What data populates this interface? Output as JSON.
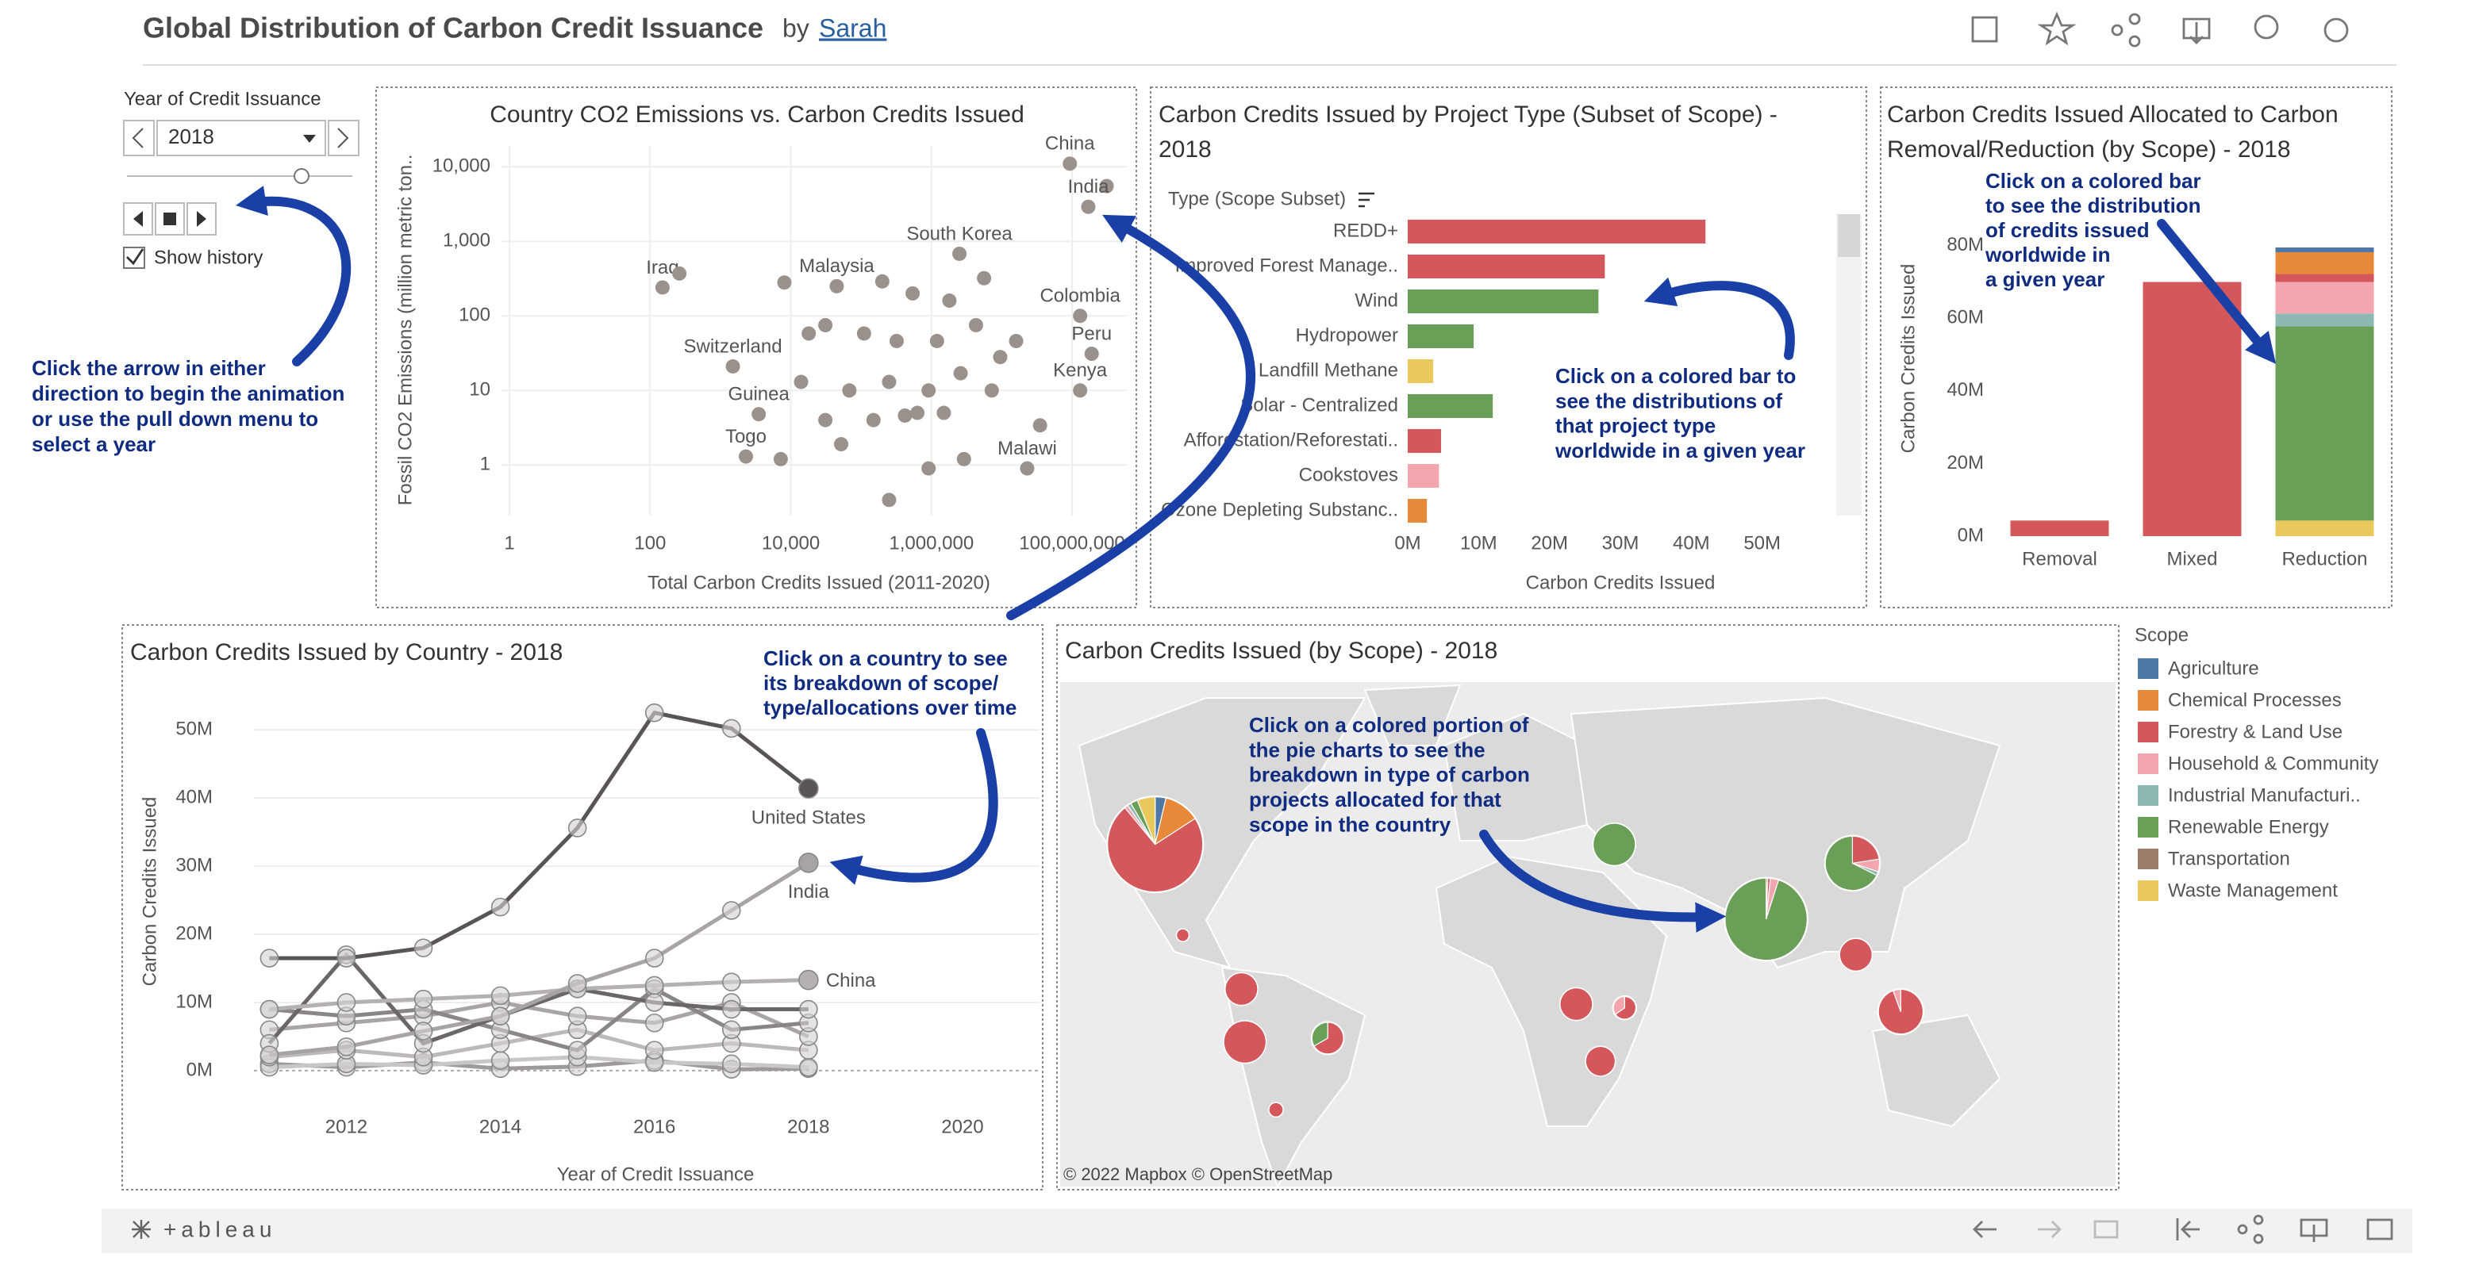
{
  "header": {
    "title": "Global Distribution of Carbon Credit Issuance",
    "by": "by",
    "author": "Sarah"
  },
  "controls": {
    "label": "Year of Credit Issuance",
    "year": "2018",
    "show_history": "Show history"
  },
  "annotations": [
    [
      "Click the arrow in either",
      "direction to begin the animation",
      "or use the pull down menu to",
      "select a year"
    ],
    [
      "Click on a country to see",
      "its breakdown of scope/",
      "type/allocations over time"
    ],
    [
      "Click on a colored bar to",
      "see the distributions of",
      "that project type",
      "worldwide in a given year"
    ],
    [
      "Click on a colored bar",
      "to see the distribution",
      "of credits issued",
      "worldwide in",
      "a given year"
    ],
    [
      "Click on a colored portion of",
      "the pie charts to see the",
      "breakdown in type of carbon",
      "projects allocated for that",
      "scope in the country"
    ]
  ],
  "map_attribution": "© 2022 Mapbox  © OpenStreetMap",
  "footer": {
    "logo": "+ableau"
  },
  "chart_data": [
    {
      "type": "scatter",
      "title": "Country CO2 Emissions vs. Carbon Credits Issued",
      "x_label": "Total Carbon Credits Issued (2011-2020)",
      "y_label": "Fossil CO2 Emissions (million metric ton..",
      "xscale": "log",
      "yscale": "log",
      "grid": true,
      "color": "#9b918c",
      "x": [
        93000000,
        310000000,
        170000000,
        2500000,
        45000,
        130000000,
        190000000,
        130000000,
        150,
        260,
        1500,
        3500,
        2300,
        23000000,
        8100,
        200000,
        540000,
        1800000,
        5600000,
        31000,
        110000,
        320000,
        1200000,
        4300000,
        16000000,
        14000,
        68000,
        250000,
        910000,
        2600000,
        7200000,
        31000,
        150000,
        420000,
        1500000,
        35000000,
        52000,
        910000,
        2900000,
        7200,
        250000,
        18000,
        630000,
        9500000
      ],
      "values": [
        11000,
        5500,
        2900,
        680,
        250,
        100,
        31,
        10,
        240,
        370,
        21,
        4.8,
        1.3,
        0.9,
        280,
        290,
        200,
        160,
        320,
        75,
        58,
        46,
        46,
        75,
        46,
        13,
        10,
        13,
        10,
        17,
        10,
        4,
        4,
        4.6,
        5,
        3.4,
        1.9,
        0.9,
        1.2,
        1.2,
        0.34,
        58,
        5,
        28
      ],
      "point_labels": [
        "China",
        null,
        "India",
        "South Korea",
        "Malaysia",
        "Colombia",
        "Peru",
        "Kenya",
        "Iraq",
        null,
        "Switzerland",
        "Guinea",
        "Togo",
        "Malawi",
        null,
        null,
        null,
        null,
        null,
        null,
        null,
        null,
        null,
        null,
        null,
        null,
        null,
        null,
        null,
        null,
        null,
        null,
        null,
        null,
        null,
        null,
        null,
        null,
        null,
        null,
        null,
        null,
        null,
        null
      ],
      "xlim": [
        0.77,
        600000000
      ],
      "ylim": [
        0.21,
        19000
      ],
      "xticks": [
        1,
        100,
        {
          "value": 10000,
          "label": "10,000"
        },
        {
          "value": 1000000,
          "label": "1,000,000"
        },
        {
          "value": 100000000,
          "label": "100,000,000"
        }
      ],
      "yticks": [
        1,
        10,
        100,
        {
          "value": 1000,
          "label": "1,000"
        },
        {
          "value": 10000,
          "label": "10,000"
        }
      ]
    },
    {
      "type": "hbar",
      "title": [
        "Carbon Credits Issued by Project Type (Subset of Scope) -",
        "2018"
      ],
      "legend_title": "Type (Scope Subset)",
      "x_label": "Carbon Credits Issued",
      "categories": [
        "REDD+",
        "Improved Forest Manage..",
        "Wind",
        "Hydropower",
        "Landfill Methane",
        "Solar - Centralized",
        "Afforestation/Reforestati..",
        "Cookstoves",
        "Ozone Depleting Substanc.."
      ],
      "values": [
        42000000,
        27800000,
        26900000,
        9300000,
        3600000,
        12000000,
        4700000,
        4400000,
        2700000
      ],
      "colors": [
        "#d4575b",
        "#d4575b",
        "#6a9f58",
        "#6a9f58",
        "#e9c95c",
        "#6a9f58",
        "#d4575b",
        "#f4a6ae",
        "#e8893a"
      ],
      "xlim": [
        0,
        60000000
      ],
      "xticks": [
        {
          "value": 0,
          "label": "0M"
        },
        {
          "value": 10000000,
          "label": "10M"
        },
        {
          "value": 20000000,
          "label": "20M"
        },
        {
          "value": 30000000,
          "label": "30M"
        },
        {
          "value": 40000000,
          "label": "40M"
        },
        {
          "value": 50000000,
          "label": "50M"
        }
      ]
    },
    {
      "type": "stacked_bar",
      "title": [
        "Carbon Credits Issued Allocated to Carbon",
        "Removal/Reduction (by Scope) - 2018"
      ],
      "y_label": "Carbon Credits Issued",
      "legend_title": "Scope",
      "categories": [
        "Removal",
        "Mixed",
        "Reduction"
      ],
      "series": [
        {
          "name": "Agriculture",
          "color": "#4e79a7",
          "values": [
            null,
            null,
            1300000
          ]
        },
        {
          "name": "Chemical Processes",
          "color": "#e8893a",
          "values": [
            null,
            null,
            6000000
          ]
        },
        {
          "name": "Forestry & Land Use",
          "color": "#d4575b",
          "values": [
            4300000,
            70000000,
            2200000
          ]
        },
        {
          "name": "Household & Community",
          "color": "#f4a6ae",
          "values": [
            null,
            null,
            8700000
          ]
        },
        {
          "name": "Industrial Manufacturi..",
          "color": "#8cb8b4",
          "values": [
            null,
            null,
            3500000
          ]
        },
        {
          "name": "Renewable Energy",
          "color": "#6a9f58",
          "values": [
            null,
            null,
            53500000
          ]
        },
        {
          "name": "Transportation",
          "color": "#9c7b6a",
          "values": [
            null,
            null,
            null
          ]
        },
        {
          "name": "Waste Management",
          "color": "#e9c95c",
          "values": [
            null,
            null,
            4300000
          ]
        }
      ],
      "ylim": [
        0,
        83000000
      ],
      "yticks": [
        {
          "value": 0,
          "label": "0M"
        },
        {
          "value": 20000000,
          "label": "20M"
        },
        {
          "value": 40000000,
          "label": "40M"
        },
        {
          "value": 60000000,
          "label": "60M"
        },
        {
          "value": 80000000,
          "label": "80M"
        }
      ]
    },
    {
      "type": "line",
      "title": "Carbon Credits Issued by Country - 2018",
      "x_label": "Year of Credit Issuance",
      "y_label": "Carbon Credits Issued",
      "grid": true,
      "x": [
        2011,
        2012,
        2013,
        2014,
        2015,
        2016,
        2017,
        2018
      ],
      "series": [
        {
          "name": "United States",
          "color": "#5a5555",
          "values": [
            16500000,
            16500000,
            18000000,
            24000000,
            35600000,
            52500000,
            50200000,
            41400000
          ]
        },
        {
          "name": "India",
          "color": "#a8a4a4",
          "values": [
            2300000,
            3500000,
            5800000,
            8000000,
            12800000,
            16500000,
            23500000,
            30500000
          ]
        },
        {
          "name": "China",
          "color": "#b5b1b1",
          "values": [
            9000000,
            10000000,
            10500000,
            11000000,
            12000000,
            12500000,
            13000000,
            13300000
          ]
        },
        {
          "color": "#6b6767",
          "values": [
            4000000,
            17000000,
            4000000,
            8000000,
            12000000,
            10000000,
            9000000,
            9000000
          ]
        },
        {
          "color": "#8a8686",
          "values": [
            9000000,
            8000000,
            9000000,
            6000000,
            3000000,
            12000000,
            6000000,
            7000000
          ]
        },
        {
          "color": "#a9a5a5",
          "values": [
            6000000,
            7000000,
            8000000,
            10000000,
            8000000,
            7000000,
            10000000,
            5000000
          ]
        },
        {
          "color": "#bdb9b9",
          "values": [
            2000000,
            3000000,
            2000000,
            4000000,
            6000000,
            3000000,
            4000000,
            3000000
          ]
        },
        {
          "color": "#c9c6c6",
          "values": [
            500000,
            1000000,
            800000,
            1500000,
            2000000,
            1200000,
            1000000,
            500000
          ]
        },
        {
          "color": "#9e9a9a",
          "values": [
            1000000,
            500000,
            1200000,
            300000,
            600000,
            1500000,
            200000,
            300000
          ]
        }
      ],
      "xlim": [
        2010.8,
        2021
      ],
      "xticks": [
        2012,
        2014,
        2016,
        2018,
        2020
      ],
      "ylim": [
        -3500000,
        57000000
      ],
      "yticks": [
        {
          "value": 0,
          "label": "0M"
        },
        {
          "value": 10000000,
          "label": "10M"
        },
        {
          "value": 20000000,
          "label": "20M"
        },
        {
          "value": 30000000,
          "label": "30M"
        },
        {
          "value": 40000000,
          "label": "40M"
        },
        {
          "value": 50000000,
          "label": "50M"
        }
      ]
    },
    {
      "type": "pie_map",
      "title": "Carbon Credits Issued (by Scope) - 2018",
      "pies": [
        {
          "lon": -98,
          "lat": 39,
          "values": [
            1500000,
            5000000,
            30000000,
            500000,
            500000,
            1000000,
            0,
            2500000
          ]
        },
        {
          "lon": 79,
          "lat": 22,
          "values": [
            0,
            200000,
            300000,
            1000000,
            0,
            29000000,
            0,
            0
          ]
        },
        {
          "lon": 104,
          "lat": 35,
          "values": [
            0,
            0,
            3000000,
            1000000,
            300000,
            9000000,
            0,
            0
          ]
        },
        {
          "lon": 118,
          "lat": -2,
          "values": [
            0,
            0,
            8500000,
            500000,
            0,
            0,
            0,
            0
          ]
        },
        {
          "lon": 35,
          "lat": 39,
          "values": [
            0,
            0,
            0,
            0,
            0,
            7700000,
            0,
            0
          ]
        },
        {
          "lon": 105,
          "lat": 13,
          "values": [
            0,
            0,
            4500000,
            0,
            0,
            0,
            0,
            0
          ]
        },
        {
          "lon": -73,
          "lat": 4,
          "values": [
            0,
            0,
            4500000,
            0,
            0,
            0,
            0,
            0
          ]
        },
        {
          "lon": -72,
          "lat": -10,
          "values": [
            0,
            0,
            7700000,
            0,
            0,
            0,
            0,
            0
          ]
        },
        {
          "lon": -48,
          "lat": -9,
          "values": [
            0,
            0,
            3000000,
            0,
            0,
            1500000,
            0,
            0
          ]
        },
        {
          "lon": 24,
          "lat": 0,
          "values": [
            0,
            0,
            4500000,
            0,
            0,
            0,
            0,
            0
          ]
        },
        {
          "lon": 31,
          "lat": -15,
          "values": [
            0,
            0,
            3700000,
            0,
            0,
            0,
            0,
            0
          ]
        },
        {
          "lon": 38,
          "lat": -1,
          "values": [
            0,
            0,
            1500000,
            800000,
            0,
            0,
            0,
            0
          ]
        },
        {
          "lon": -63,
          "lat": -27,
          "values": [
            0,
            0,
            800000,
            0,
            0,
            0,
            0,
            0
          ]
        },
        {
          "lon": -90,
          "lat": 18,
          "values": [
            0,
            0,
            600000,
            0,
            0,
            0,
            0,
            0
          ]
        }
      ]
    }
  ]
}
